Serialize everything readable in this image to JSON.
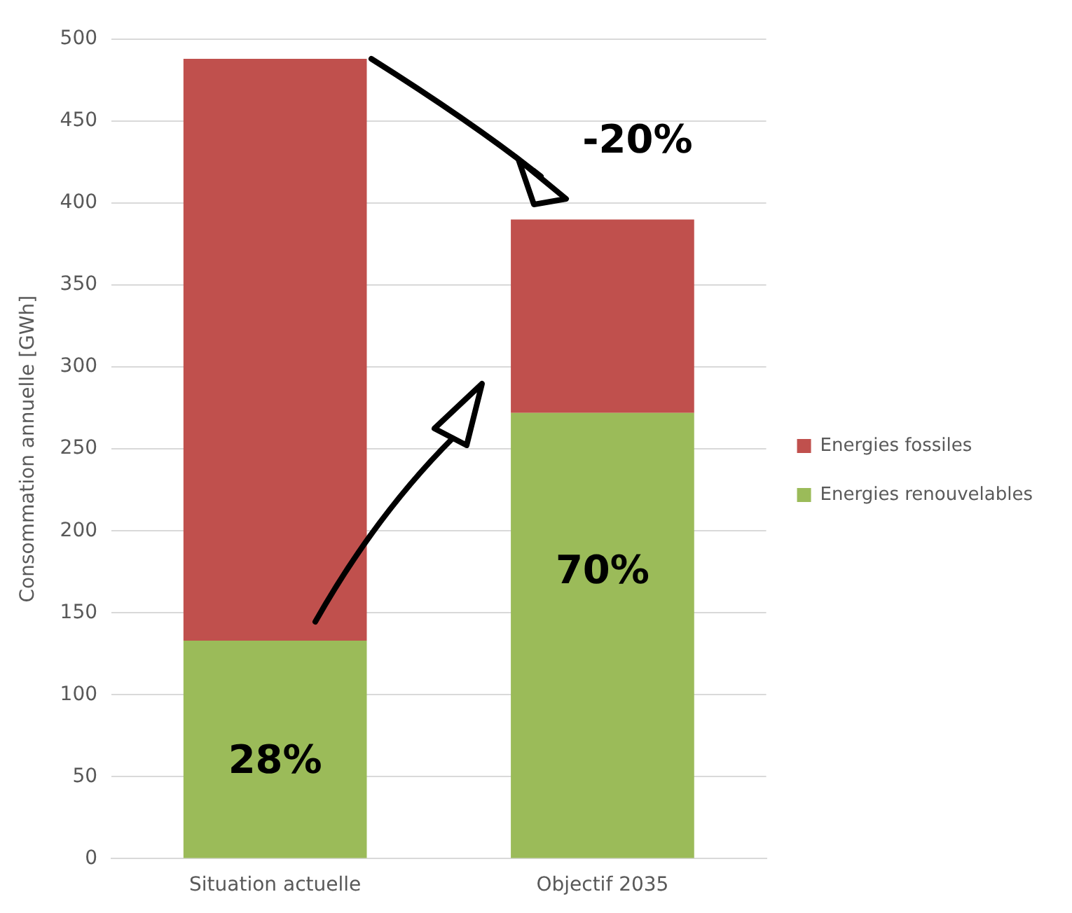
{
  "chart_data": {
    "type": "bar",
    "stacked": true,
    "ylabel": "Consommation annuelle [GWh]",
    "categories": [
      "Situation actuelle",
      "Objectif 2035"
    ],
    "series": [
      {
        "name": "Energies renouvelables",
        "color": "#9bbb59",
        "values": [
          133,
          272
        ]
      },
      {
        "name": "Energies fossiles",
        "color": "#c0504d",
        "values": [
          355,
          118
        ]
      }
    ],
    "ylim": [
      0,
      500
    ],
    "yticks": [
      0,
      50,
      100,
      150,
      200,
      250,
      300,
      350,
      400,
      450,
      500
    ],
    "grid": "y",
    "legend": "right",
    "annotations": [
      {
        "text": "-20%",
        "x": "Objectif 2035",
        "y": 390
      },
      "28%",
      "70%"
    ]
  }
}
